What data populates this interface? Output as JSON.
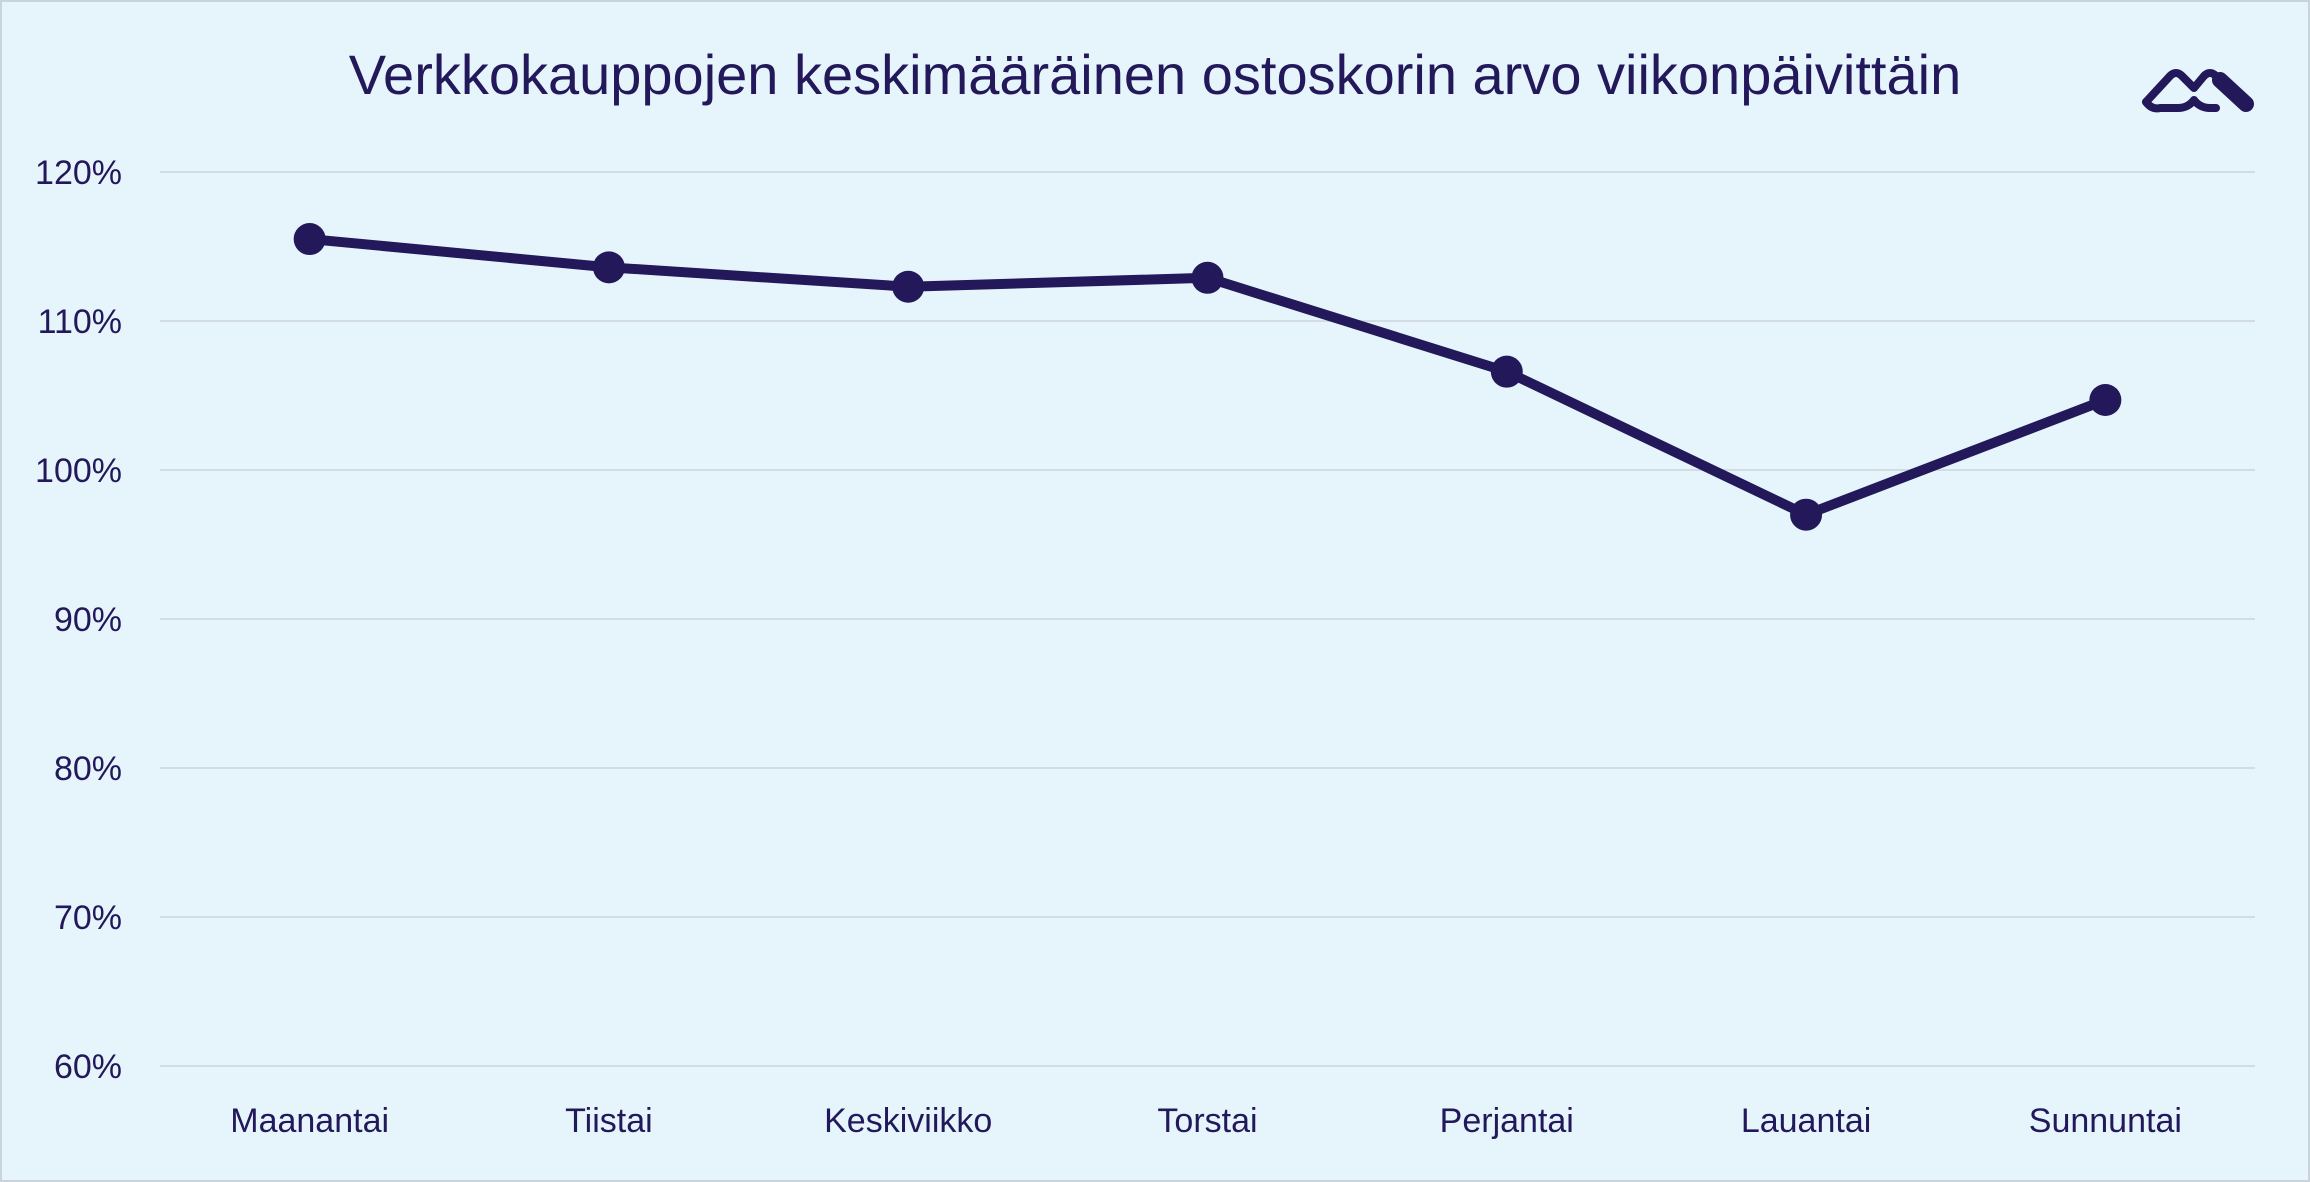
{
  "chart_data": {
    "type": "line",
    "title": "Verkkokauppojen keskimääräinen ostoskorin arvo viikonpäivittäin",
    "categories": [
      "Maanantai",
      "Tiistai",
      "Keskiviikko",
      "Torstai",
      "Perjantai",
      "Lauantai",
      "Sunnuntai"
    ],
    "series": [
      {
        "values": [
          115.5,
          113.6,
          112.3,
          112.9,
          106.6,
          97.0,
          104.7
        ]
      }
    ],
    "y_ticks": [
      "60%",
      "70%",
      "80%",
      "90%",
      "100%",
      "110%",
      "120%"
    ],
    "y_tick_values": [
      60,
      70,
      80,
      90,
      100,
      110,
      120
    ],
    "ylim": [
      60,
      120
    ],
    "grid": true,
    "legend": "none",
    "colors": {
      "line": "#22185a",
      "grid": "#d4dbe2",
      "background": "#e6f5fc",
      "text": "#22185a"
    }
  },
  "brand": {
    "logo_icon": "brand-logo-icon"
  }
}
